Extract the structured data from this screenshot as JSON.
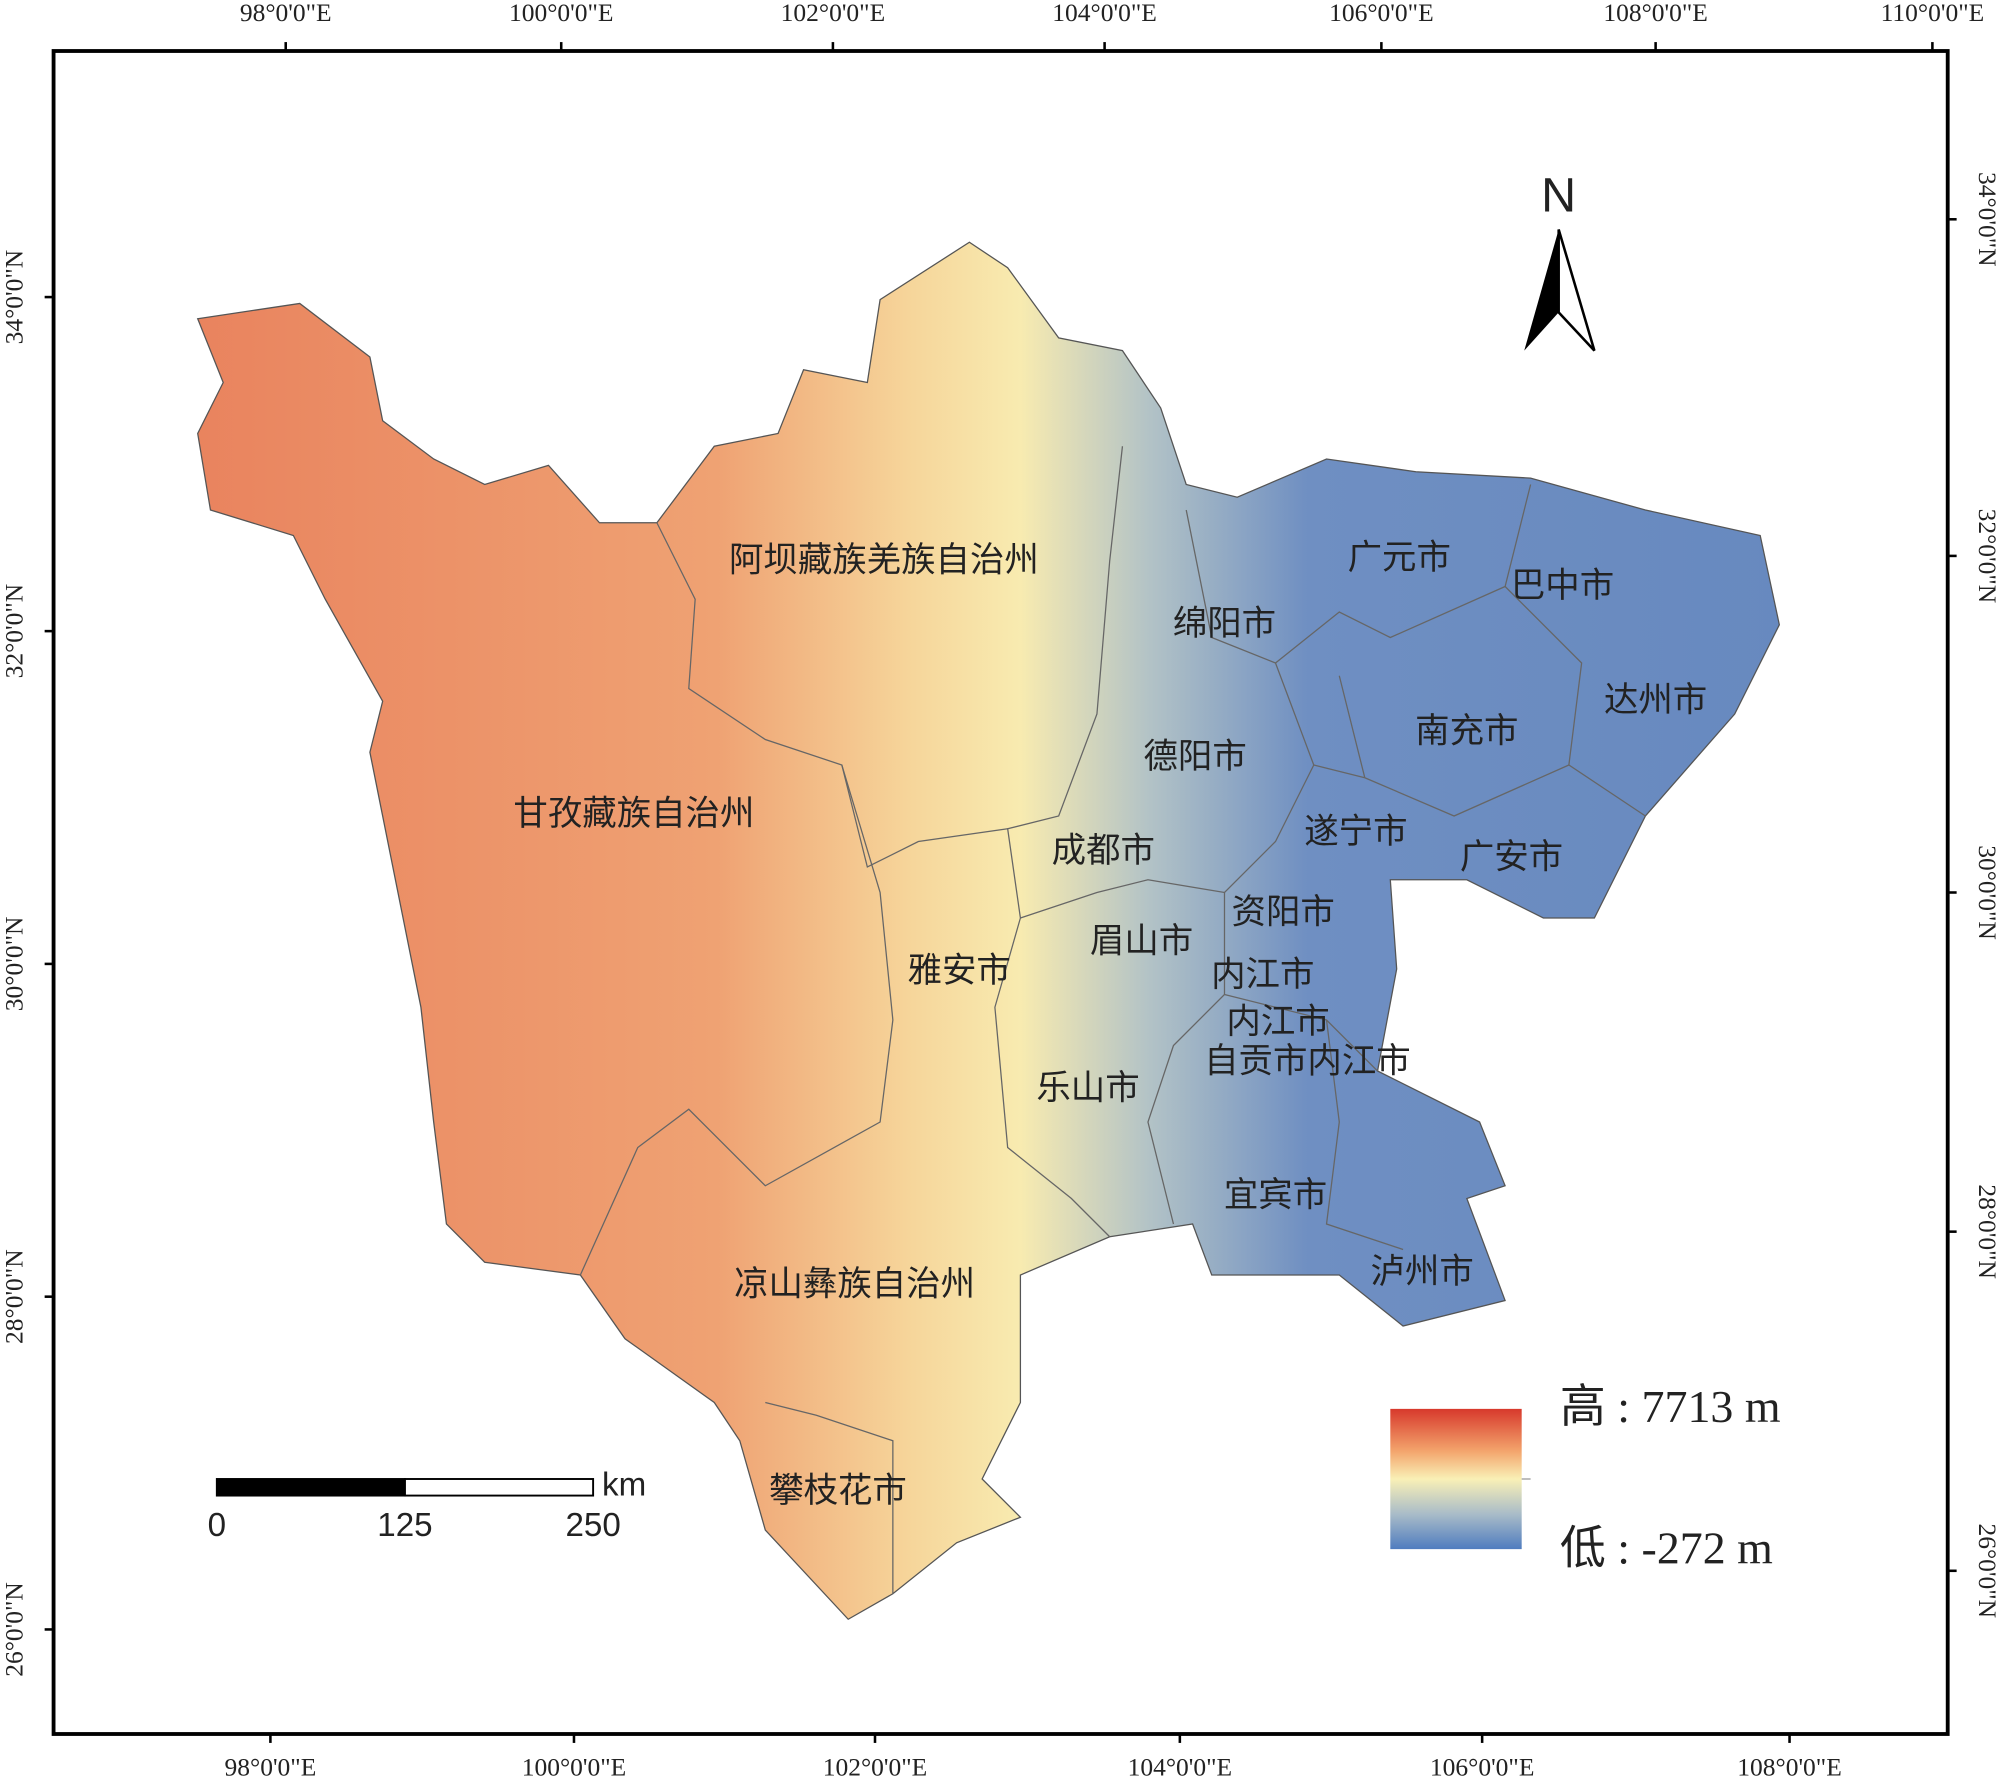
{
  "graticule": {
    "top": [
      "98°0'0\"E",
      "100°0'0\"E",
      "102°0'0\"E",
      "104°0'0\"E",
      "106°0'0\"E",
      "108°0'0\"E",
      "110°0'0\"E"
    ],
    "bottom": [
      "98°0'0\"E",
      "100°0'0\"E",
      "102°0'0\"E",
      "104°0'0\"E",
      "106°0'0\"E",
      "108°0'0\"E"
    ],
    "left": [
      "34°0'0\"N",
      "32°0'0\"N",
      "30°0'0\"N",
      "28°0'0\"N",
      "26°0'0\"N"
    ],
    "right": [
      "34°0'0\"N",
      "32°0'0\"N",
      "30°0'0\"N",
      "28°0'0\"N",
      "26°0'0\"N"
    ]
  },
  "regions": [
    "甘孜藏族自治州",
    "阿坝藏族羌族自治州",
    "凉山彝族自治州",
    "攀枝花市",
    "雅安市",
    "成都市",
    "德阳市",
    "绵阳市",
    "广元市",
    "巴中市",
    "达州市",
    "南充市",
    "遂宁市",
    "广安市",
    "资阳市",
    "眉山市",
    "内江市",
    "内江市",
    "自贡市内江市",
    "乐山市",
    "宜宾市",
    "泸州市"
  ],
  "north_arrow": "N",
  "scale_bar": {
    "unit": "km",
    "ticks": [
      0,
      125,
      250
    ]
  },
  "legend": {
    "high": "高 : 7713 m",
    "low": "低 : -272 m"
  }
}
